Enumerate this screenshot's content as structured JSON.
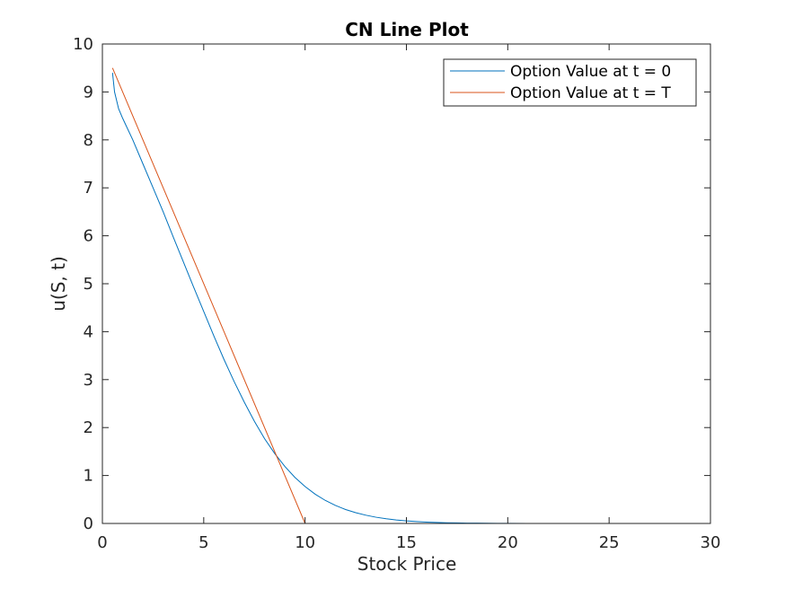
{
  "chart_data": {
    "type": "line",
    "title": "CN Line Plot",
    "xlabel": "Stock Price",
    "ylabel": "u(S, t)",
    "xlim": [
      0,
      30
    ],
    "ylim": [
      0,
      10
    ],
    "xticks": [
      0,
      5,
      10,
      15,
      20,
      25,
      30
    ],
    "yticks": [
      0,
      1,
      2,
      3,
      4,
      5,
      6,
      7,
      8,
      9,
      10
    ],
    "grid": false,
    "legend_position": "top-right",
    "series": [
      {
        "name": "Option Value at t = 0",
        "color": "#0072BD",
        "x": [
          0.5,
          0.6,
          0.8,
          1,
          1.5,
          2,
          2.5,
          3,
          3.5,
          4,
          4.5,
          5,
          5.5,
          6,
          6.5,
          7,
          7.5,
          8,
          8.5,
          9,
          9.5,
          10,
          10.5,
          11,
          11.5,
          12,
          12.5,
          13,
          13.5,
          14,
          14.5,
          15,
          15.5,
          16,
          16.5,
          17,
          17.5,
          18,
          18.5,
          19,
          19.5,
          20,
          21,
          22,
          23,
          24,
          25,
          26,
          27.2
        ],
        "y": [
          9.4,
          9.0,
          8.65,
          8.45,
          8.0,
          7.5,
          7.0,
          6.5,
          5.97,
          5.45,
          4.93,
          4.42,
          3.91,
          3.42,
          2.96,
          2.53,
          2.13,
          1.77,
          1.46,
          1.19,
          0.96,
          0.77,
          0.61,
          0.48,
          0.375,
          0.29,
          0.225,
          0.172,
          0.13,
          0.098,
          0.073,
          0.054,
          0.04,
          0.029,
          0.021,
          0.015,
          0.011,
          0.008,
          0.006,
          0.004,
          0.003,
          0.002,
          0.001,
          0.0005,
          0.0003,
          0.0002,
          0.0001,
          0.0,
          0.0
        ]
      },
      {
        "name": "Option Value at t = T",
        "color": "#D95319",
        "x": [
          0.5,
          10,
          11,
          15,
          20,
          25,
          27.2
        ],
        "y": [
          9.5,
          0,
          0,
          0,
          0,
          0,
          0
        ]
      }
    ]
  }
}
